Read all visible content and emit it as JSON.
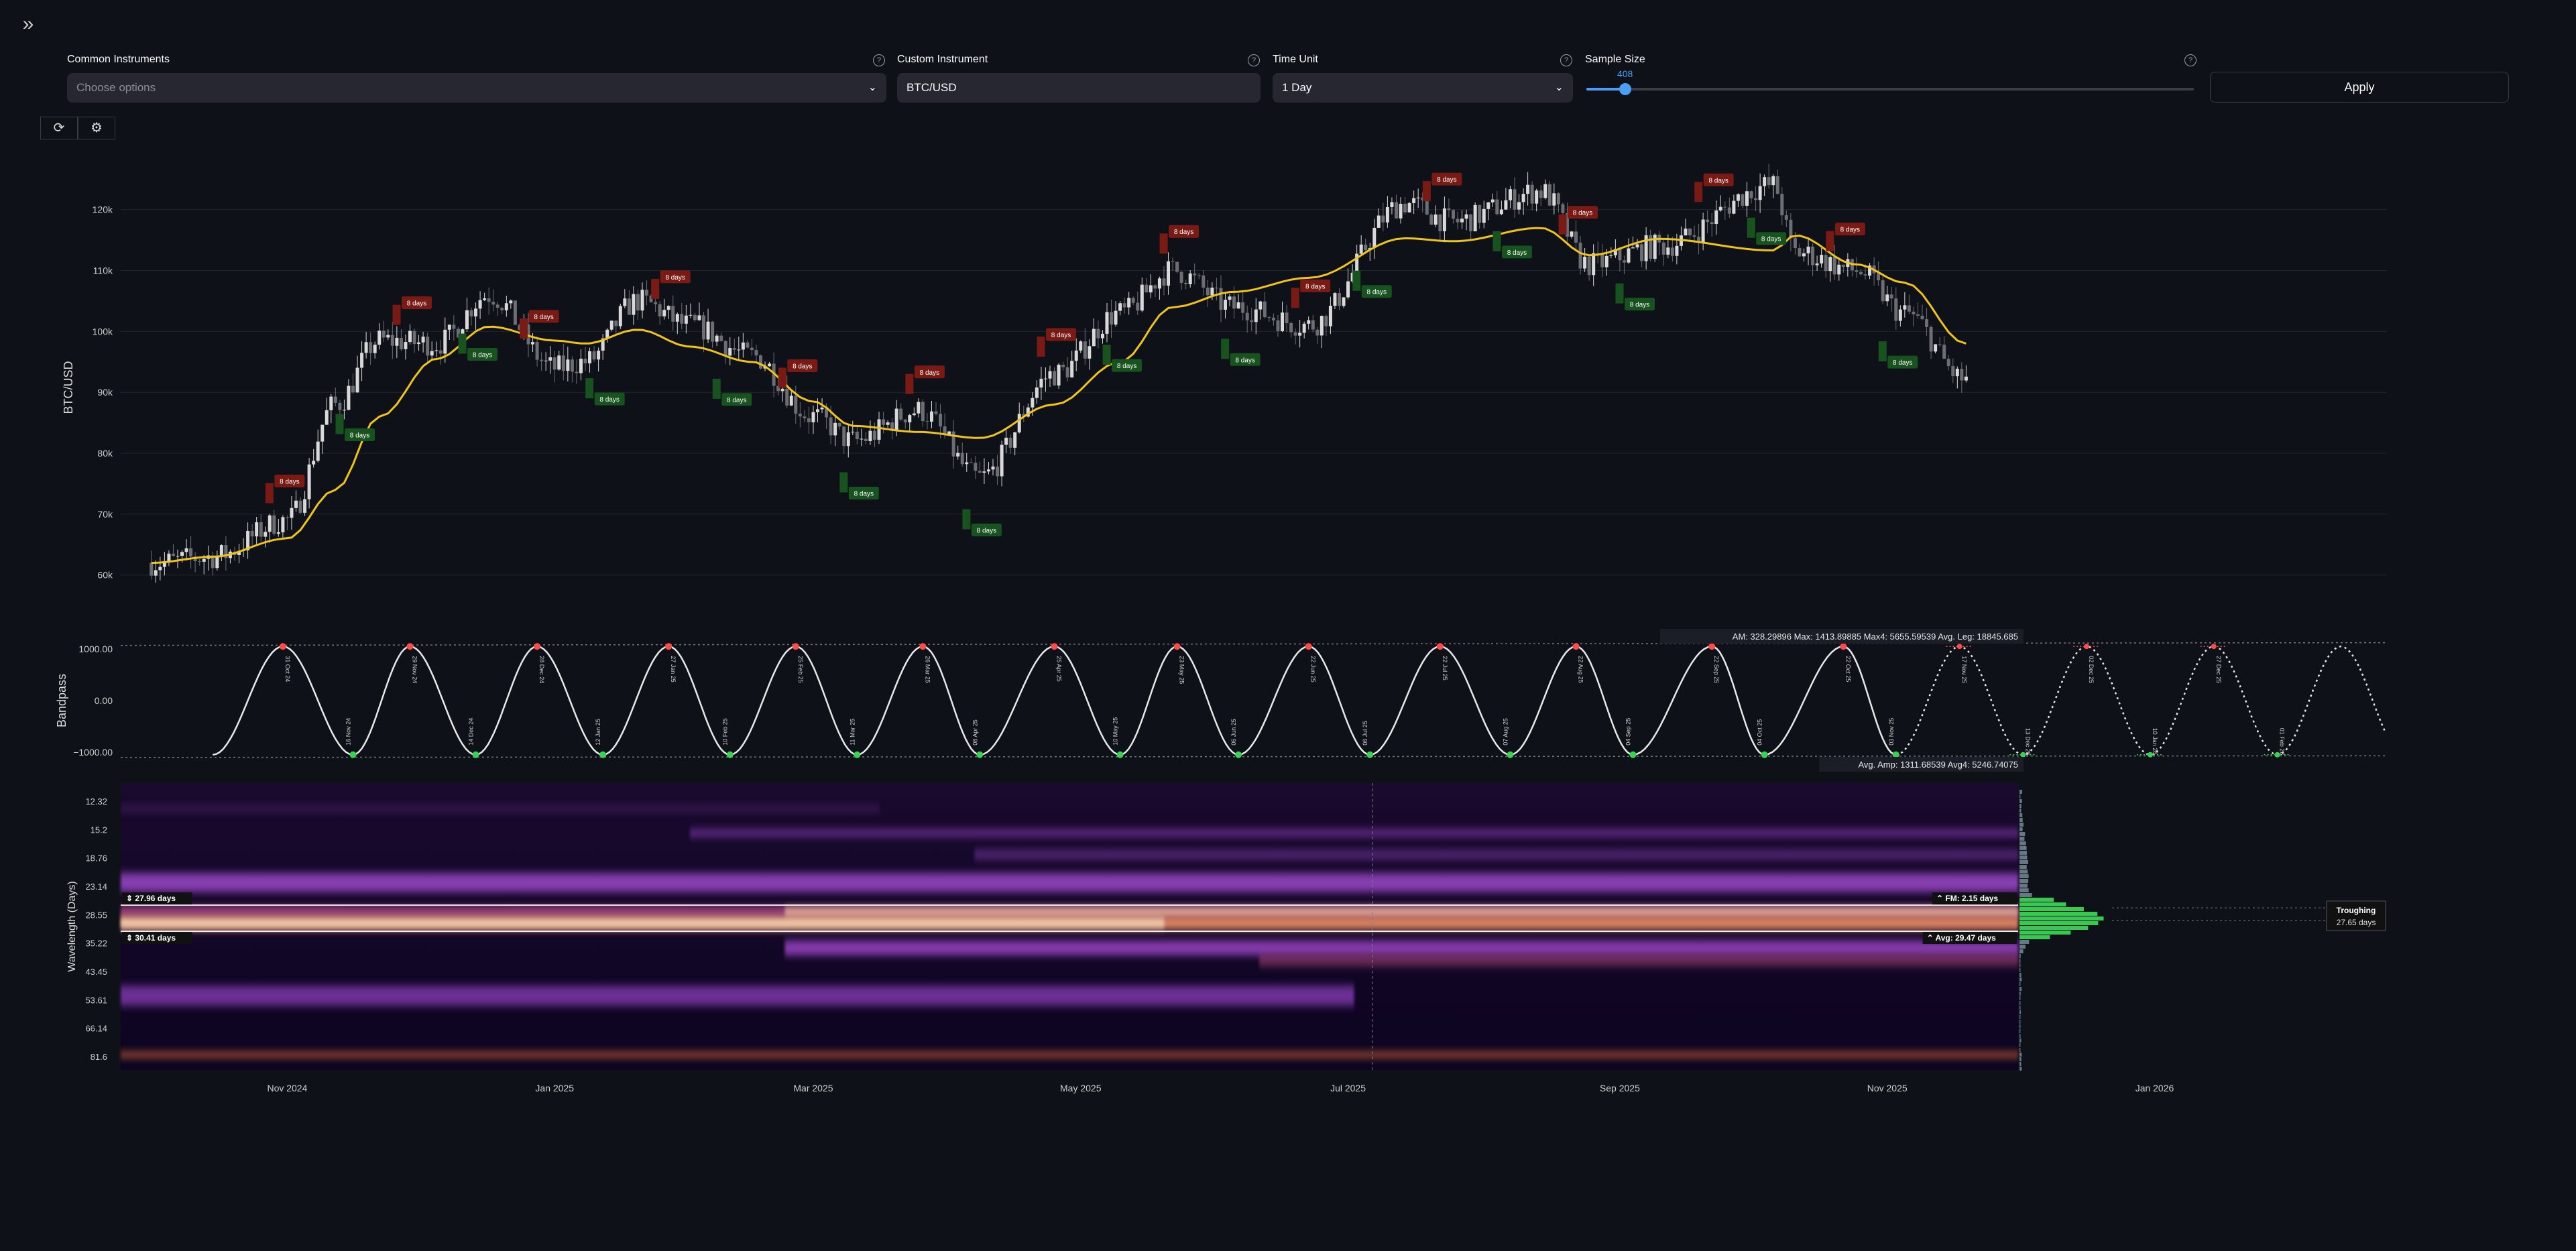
{
  "controls": {
    "common_instruments": {
      "label": "Common Instruments",
      "placeholder": "Choose options"
    },
    "custom_instrument": {
      "label": "Custom Instrument",
      "value": "BTC/USD"
    },
    "time_unit": {
      "label": "Time Unit",
      "value": "1 Day"
    },
    "sample_size": {
      "label": "Sample Size",
      "value": "408",
      "fraction": 0.064
    },
    "apply_label": "Apply",
    "help_glyph": "?",
    "chevron_glyph": "⌄",
    "sidebar_glyph": "»"
  },
  "toolbar": [
    {
      "icon": "refresh-icon",
      "glyph": "⟳"
    },
    {
      "icon": "settings-icon",
      "glyph": "⚙"
    }
  ],
  "colors": {
    "background": "#0e1117",
    "fld": "#f0c419",
    "peak": "#ff4b4b",
    "trough": "#39d353",
    "peak_label_bg": "#7a1a15",
    "trough_label_bg": "#17521f",
    "accent": "#4a9ff5"
  },
  "price_chart": {
    "ylabel": "BTC/USD",
    "yticks": [
      "60k",
      "70k",
      "80k",
      "90k",
      "100k",
      "110k",
      "120k"
    ],
    "peak_badge": "8 days",
    "trough_badge": "8 days"
  },
  "bandpass": {
    "ylabel": "Bandpass",
    "yticks": [
      "1000.00",
      "0.00",
      "−1000.00"
    ],
    "stats_top": [
      "AM: 328.29896",
      "Max: 1413.89885",
      "Max4: 5655.59539",
      "Avg. Leg: 18845.685"
    ],
    "stats_bottom": [
      "Avg. Amp: 1311.68539",
      "Avg4: 5246.74075"
    ],
    "peak_labels": [
      "31 Oct 24",
      "29 Nov 24",
      "28 Dec 24",
      "27 Jan 25",
      "25 Feb 25",
      "26 Mar 25",
      "25 Apr 25",
      "23 May 25",
      "22 Jun 25",
      "22 Jul 25",
      "22 Aug 25",
      "22 Sep 25",
      "22 Oct 25"
    ],
    "trough_labels": [
      "16 Nov 24",
      "14 Dec 24",
      "12 Jan 25",
      "10 Feb 25",
      "11 Mar 25",
      "08 Apr 25",
      "10 May 25",
      "06 Jun 25",
      "06 Jul 25",
      "07 Aug 25",
      "04 Sep 25",
      "04 Oct 25",
      "03 Nov 25"
    ],
    "projection_labels": [
      "17 Nov 25",
      "13 Dec 25",
      "02 Dec 25",
      "10 Jan 26",
      "27 Dec 25",
      "01 Feb 26"
    ]
  },
  "spectrogram": {
    "ylabel": "Wavelength (Days)",
    "yticks": [
      "12.32",
      "15.2",
      "18.76",
      "23.14",
      "28.55",
      "35.22",
      "43.45",
      "53.61",
      "66.14",
      "81.6"
    ],
    "tag_top": "27.96 days",
    "tag_bottom": "30.41 days",
    "fm_label": "FM: 2.15 days",
    "avg_label": "Avg: 29.47 days",
    "troughing_title": "Troughing",
    "troughing_value": "27.65 days"
  },
  "xaxis": [
    "Nov 2024",
    "Jan 2025",
    "Mar 2025",
    "May 2025",
    "Jul 2025",
    "Sep 2025",
    "Nov 2025",
    "Jan 2026"
  ],
  "chart_data": [
    {
      "type": "candlestick",
      "ylabel": "BTC/USD",
      "ylim": [
        57000,
        128000
      ],
      "x": [
        "2024-10-01",
        "2024-10-15",
        "2024-11-01",
        "2024-11-12",
        "2024-11-22",
        "2024-12-05",
        "2024-12-17",
        "2025-01-01",
        "2025-01-08",
        "2025-01-20",
        "2025-02-01",
        "2025-02-15",
        "2025-03-01",
        "2025-03-10",
        "2025-03-25",
        "2025-04-08",
        "2025-04-25",
        "2025-05-10",
        "2025-05-22",
        "2025-06-05",
        "2025-06-22",
        "2025-07-14",
        "2025-07-25",
        "2025-08-14",
        "2025-08-25",
        "2025-09-10",
        "2025-10-06",
        "2025-10-11",
        "2025-10-25",
        "2025-11-05",
        "2025-11-19"
      ],
      "close": [
        62000,
        63000,
        69000,
        88000,
        98500,
        98000,
        106000,
        94000,
        95000,
        105000,
        101000,
        96000,
        86000,
        82000,
        87000,
        76000,
        93000,
        103000,
        110000,
        104000,
        101000,
        121000,
        118000,
        123000,
        111000,
        114000,
        124000,
        113000,
        110000,
        103000,
        92000
      ],
      "fld": [
        62000,
        63000,
        66000,
        74000,
        86000,
        95500,
        100800,
        98500,
        98000,
        100300,
        97500,
        95000,
        88500,
        84500,
        83500,
        82500,
        88000,
        95000,
        104000,
        106500,
        108800,
        115300,
        114800,
        117000,
        112500,
        115200,
        113300,
        115800,
        111000,
        108000,
        98000
      ]
    },
    {
      "type": "line",
      "ylabel": "Bandpass",
      "ylim": [
        -1300,
        1300
      ],
      "peak_dates": [
        "2024-10-31",
        "2024-11-29",
        "2024-12-28",
        "2025-01-27",
        "2025-02-25",
        "2025-03-26",
        "2025-04-25",
        "2025-05-23",
        "2025-06-22",
        "2025-07-22",
        "2025-08-22",
        "2025-09-22",
        "2025-10-22"
      ],
      "trough_dates": [
        "2024-11-16",
        "2024-12-14",
        "2025-01-12",
        "2025-02-10",
        "2025-03-11",
        "2025-04-08",
        "2025-05-10",
        "2025-06-06",
        "2025-07-06",
        "2025-08-07",
        "2025-09-04",
        "2025-10-04",
        "2025-11-03"
      ],
      "amplitude": 1050
    },
    {
      "type": "heatmap",
      "ylabel": "Wavelength (Days)",
      "y": [
        12.32,
        15.2,
        18.76,
        23.14,
        28.55,
        35.22,
        43.45,
        53.61,
        66.14,
        81.6
      ],
      "dominant_wavelengths": [
        27.96,
        30.41
      ]
    }
  ]
}
